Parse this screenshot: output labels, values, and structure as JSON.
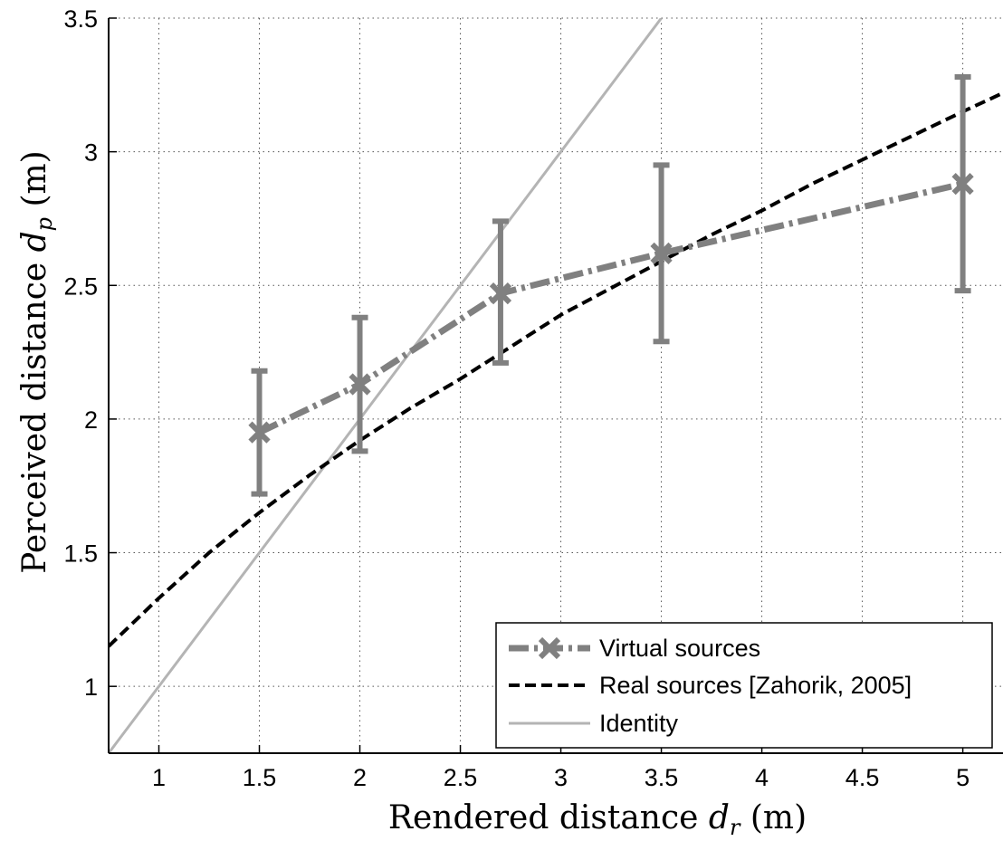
{
  "chart_data": {
    "type": "line",
    "xlabel_prefix": "Rendered distance ",
    "xlabel_symbol": "d",
    "xlabel_subscript": "r",
    "xlabel_suffix": " (m)",
    "ylabel_prefix": "Perceived distance ",
    "ylabel_symbol": "d",
    "ylabel_subscript": "p",
    "ylabel_suffix": " (m)",
    "xlim": [
      0.75,
      5.2
    ],
    "ylim": [
      0.75,
      3.5
    ],
    "xticks": [
      1,
      1.5,
      2,
      2.5,
      3,
      3.5,
      4,
      4.5,
      5
    ],
    "xtick_labels": [
      "1",
      "1.5",
      "2",
      "2.5",
      "3",
      "3.5",
      "4",
      "4.5",
      "5"
    ],
    "yticks": [
      1,
      1.5,
      2,
      2.5,
      3,
      3.5
    ],
    "ytick_labels": [
      "1",
      "1.5",
      "2",
      "2.5",
      "3",
      "3.5"
    ],
    "grid": true,
    "legend_position": "bottom-right",
    "series": [
      {
        "name": "Virtual sources",
        "color": "#808080",
        "style": "dash-dot",
        "marker": "x",
        "x": [
          1.5,
          2.0,
          2.7,
          3.5,
          5.0
        ],
        "y": [
          1.95,
          2.13,
          2.47,
          2.62,
          2.88
        ],
        "err_low": [
          1.72,
          1.88,
          2.21,
          2.29,
          2.48
        ],
        "err_high": [
          2.18,
          2.38,
          2.74,
          2.95,
          3.28
        ]
      },
      {
        "name": "Real sources [Zahorik, 2005]",
        "color": "#000000",
        "style": "dashed",
        "x": [
          0.75,
          1.0,
          1.25,
          1.5,
          1.75,
          2.0,
          2.25,
          2.5,
          2.75,
          3.0,
          3.25,
          3.5,
          3.75,
          4.0,
          4.25,
          4.5,
          4.75,
          5.0,
          5.2
        ],
        "y": [
          1.15,
          1.33,
          1.5,
          1.65,
          1.79,
          1.92,
          2.04,
          2.15,
          2.27,
          2.39,
          2.49,
          2.59,
          2.69,
          2.78,
          2.88,
          2.97,
          3.06,
          3.15,
          3.22
        ]
      },
      {
        "name": "Identity",
        "color": "#b4b4b4",
        "style": "solid",
        "x": [
          0.75,
          3.5
        ],
        "y": [
          0.75,
          3.5
        ]
      }
    ]
  }
}
